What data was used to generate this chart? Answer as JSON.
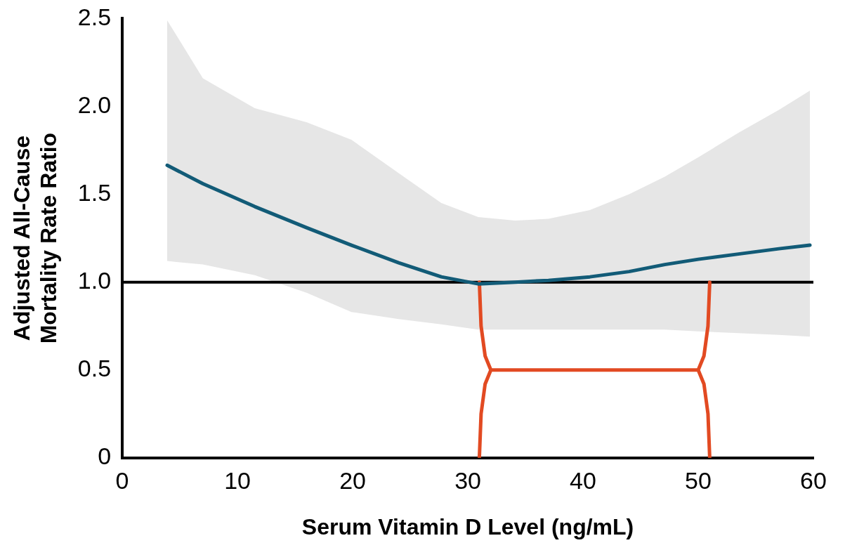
{
  "chart_data": {
    "type": "line",
    "xlabel": "Serum Vitamin D Level (ng/mL)",
    "ylabel": "Adjusted All-Cause\nMortality Rate Ratio",
    "xlim": [
      0,
      60
    ],
    "xticks": [
      0,
      10,
      20,
      30,
      40,
      50,
      60
    ],
    "ylim": [
      0,
      2.5
    ],
    "yticks": [
      0,
      {
        "value": 0.5,
        "label": "0.5"
      },
      {
        "value": 1,
        "label": "1.0"
      },
      {
        "value": 1.5,
        "label": "1.5"
      },
      {
        "value": 2,
        "label": "2.0"
      },
      {
        "value": 2.5,
        "label": "2.5"
      }
    ],
    "marker": "none",
    "series": [
      {
        "color": "#125b77",
        "x": [
          3.9,
          7,
          11.5,
          16,
          19.9,
          24,
          27.7,
          30.9,
          34.1,
          37,
          40.6,
          44,
          47.1,
          50,
          53.5,
          57,
          59.7
        ],
        "values": [
          1.665,
          1.56,
          1.43,
          1.31,
          1.21,
          1.11,
          1.03,
          0.99,
          1.0,
          1.01,
          1.03,
          1.06,
          1.1,
          1.13,
          1.16,
          1.19,
          1.21
        ],
        "lower": [
          1.12,
          1.1,
          1.04,
          0.94,
          0.83,
          0.79,
          0.76,
          0.73,
          0.73,
          0.73,
          0.73,
          0.73,
          0.73,
          0.72,
          0.71,
          0.7,
          0.69
        ],
        "upper": [
          2.49,
          2.16,
          1.99,
          1.91,
          1.81,
          1.62,
          1.45,
          1.37,
          1.35,
          1.36,
          1.41,
          1.5,
          1.6,
          1.71,
          1.85,
          1.98,
          2.09
        ]
      },
      {
        "color": "#e24a22",
        "x": [
          31,
          31.15,
          31.5,
          32,
          50,
          50.5,
          50.85,
          51,
          null,
          31,
          31.15,
          31.5,
          32,
          null,
          51,
          50.85,
          50.5,
          50
        ],
        "values": [
          1.0,
          0.75,
          0.58,
          0.5,
          0.5,
          0.42,
          0.25,
          0,
          null,
          0,
          0.25,
          0.42,
          0.5,
          null,
          1.0,
          0.75,
          0.58,
          0.5
        ]
      }
    ],
    "ref_lines": [
      {
        "axis": "y",
        "value": 1,
        "color": "#000000"
      }
    ]
  }
}
